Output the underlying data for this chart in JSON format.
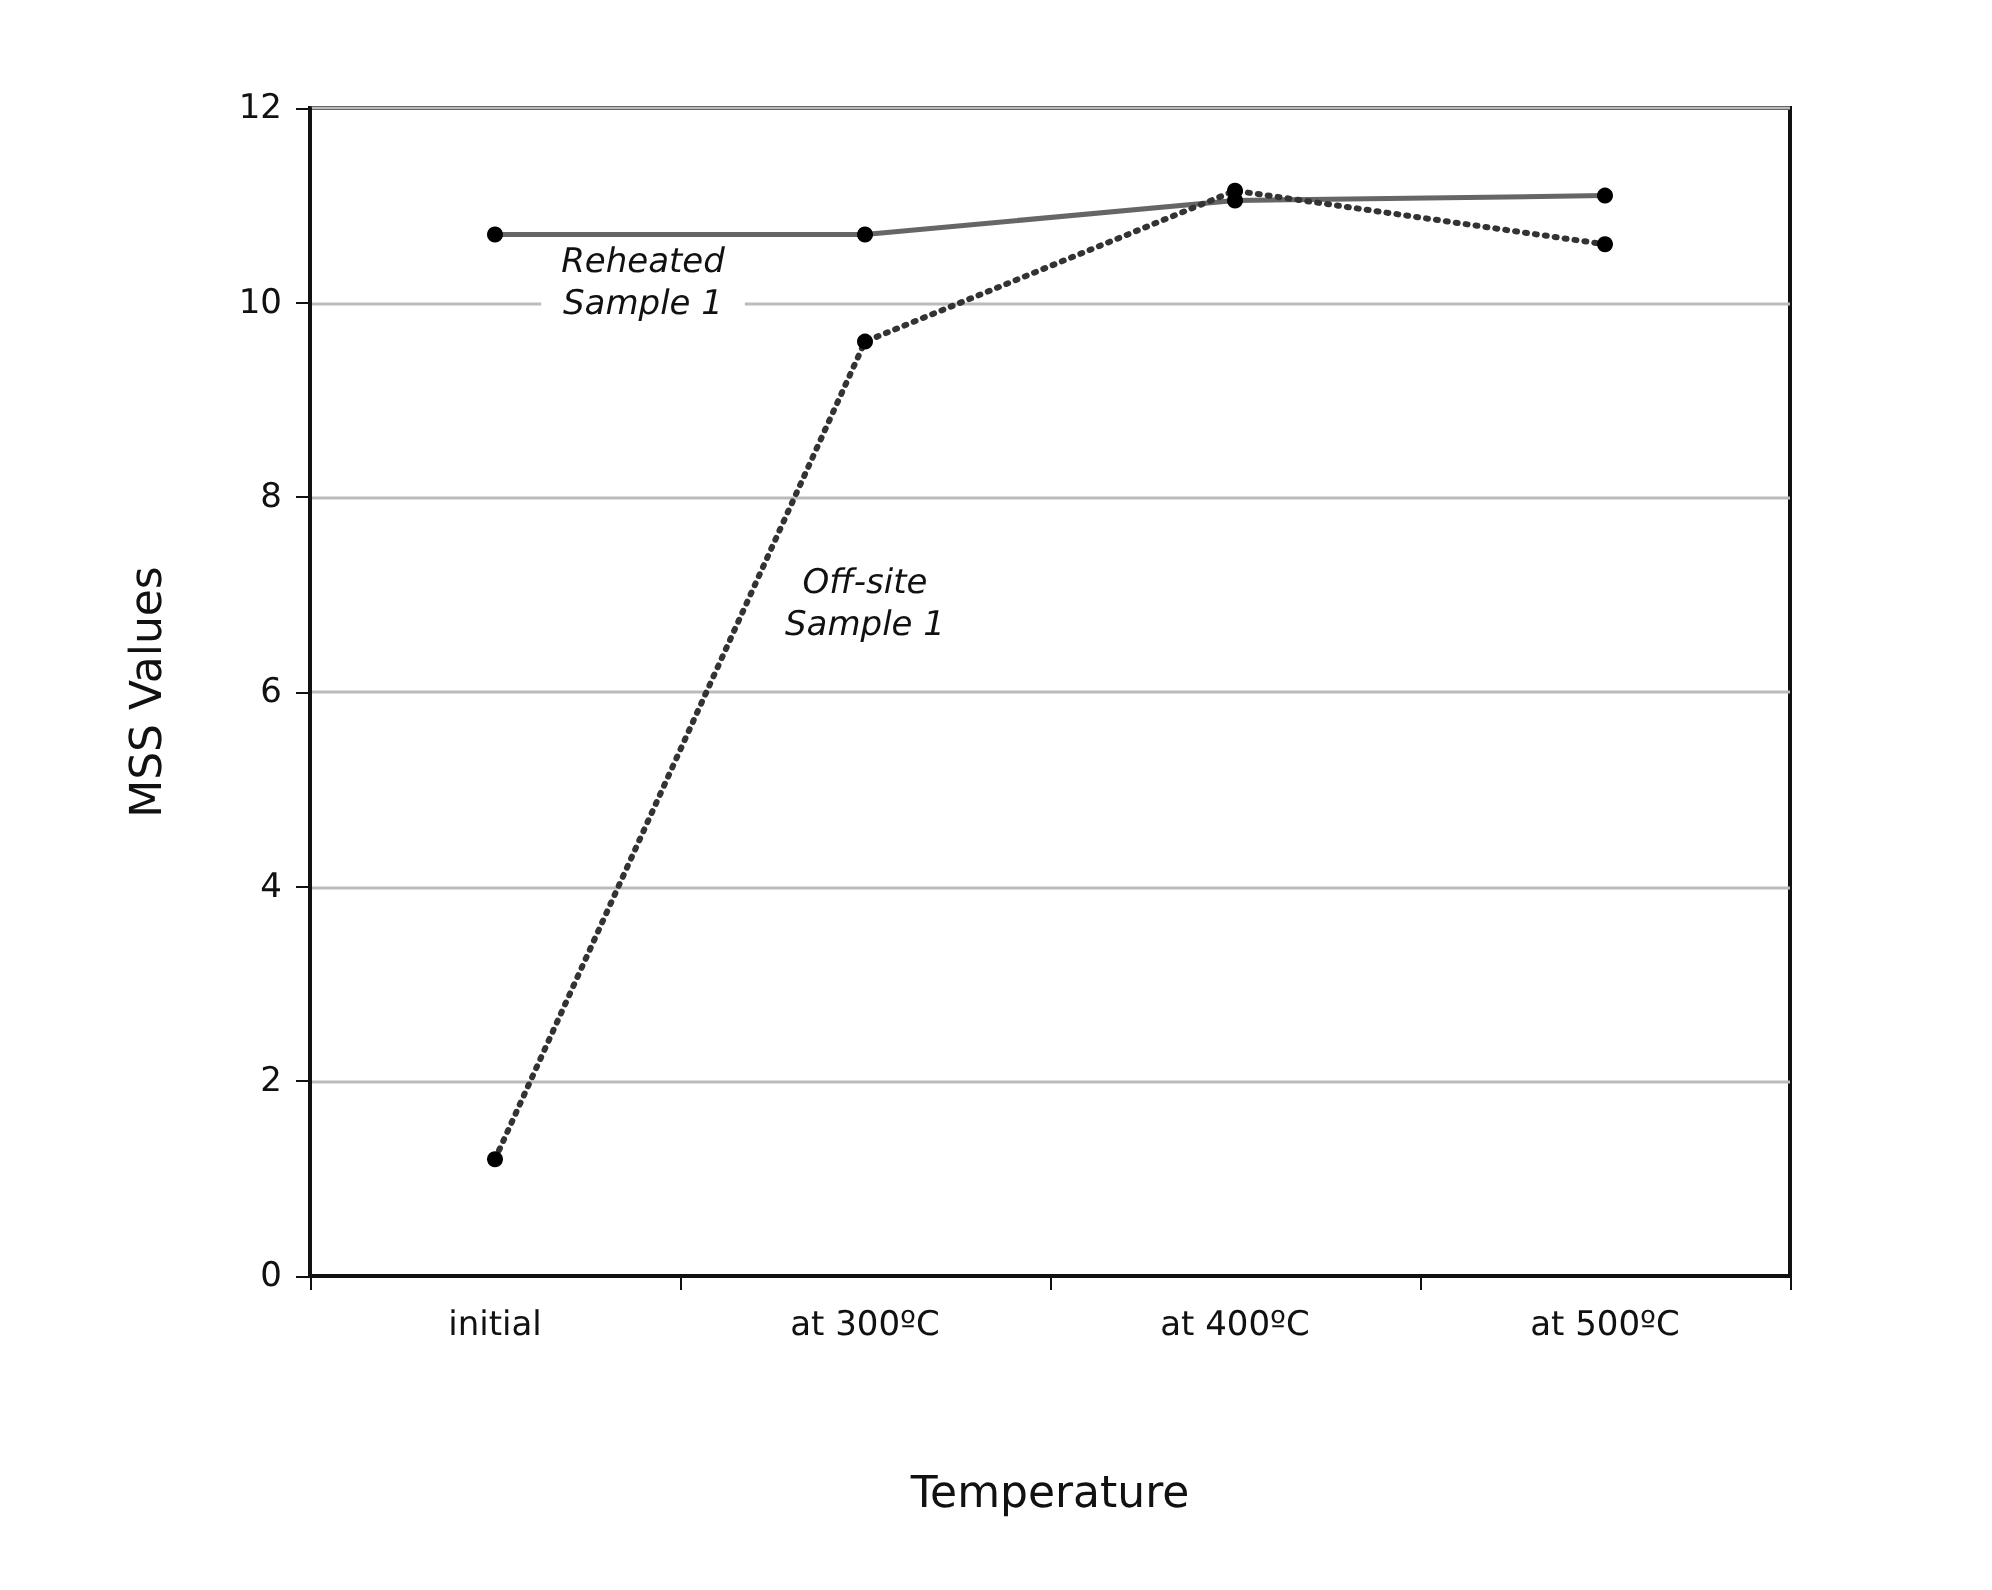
{
  "chart_data": {
    "type": "line",
    "xlabel": "Temperature",
    "ylabel": "MSS Values",
    "categories": [
      "initial",
      "at 300ºC",
      "at 400ºC",
      "at 500ºC"
    ],
    "series": [
      {
        "name": "Reheated\nSample 1",
        "color": "#666666",
        "values": [
          10.7,
          10.7,
          11.05,
          11.1
        ],
        "line_style": "solid"
      },
      {
        "name": "Off-site\nSample 1",
        "color": "#333333",
        "values": [
          1.2,
          9.6,
          11.15,
          10.6
        ],
        "line_style": "dotted"
      }
    ],
    "ylim": [
      0,
      12
    ],
    "yticks": [
      0,
      2,
      4,
      6,
      8,
      10,
      12
    ],
    "grid": "y",
    "marker": "circle",
    "legend": false
  }
}
